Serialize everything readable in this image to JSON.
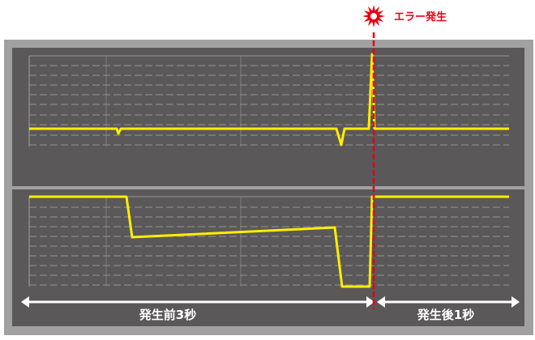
{
  "error_marker": {
    "label": "エラー発生",
    "icon": "explosion-burst-icon"
  },
  "ranges": {
    "before_label": "発生前3秒",
    "after_label": "発生後1秒"
  },
  "colors": {
    "frame": "#a0a1a0",
    "panel": "#5a5859",
    "grid": "#8a8889",
    "signal": "#ffee00",
    "error": "#e60012",
    "arrow": "#ffffff"
  }
}
